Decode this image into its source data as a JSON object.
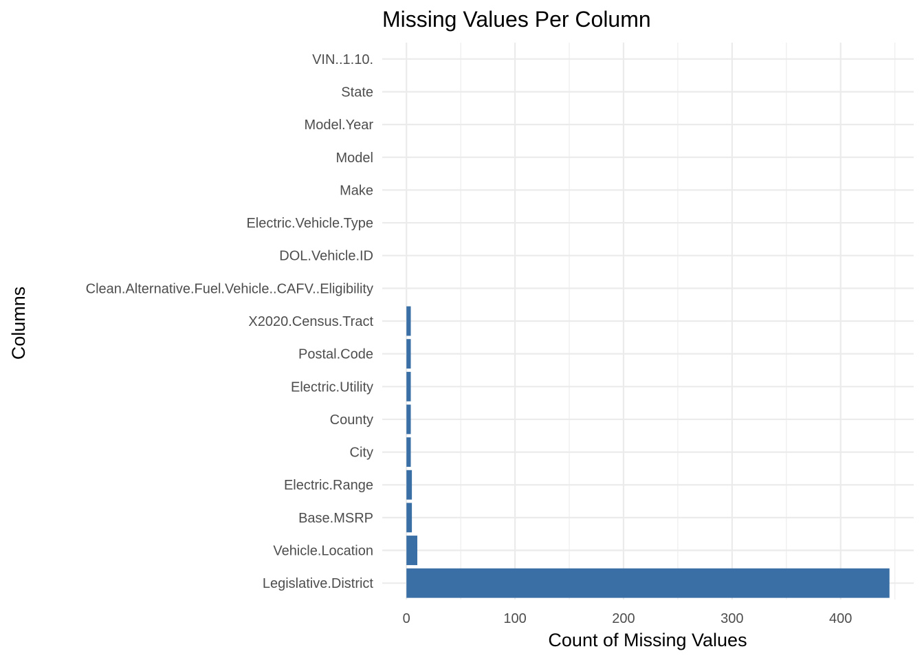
{
  "chart_data": {
    "type": "bar",
    "orientation": "horizontal",
    "title": "Missing Values Per Column",
    "xlabel": "Count of Missing Values",
    "ylabel": "Columns",
    "categories": [
      "Legislative.District",
      "Vehicle.Location",
      "Base.MSRP",
      "Electric.Range",
      "City",
      "County",
      "Electric.Utility",
      "Postal.Code",
      "X2020.Census.Tract",
      "Clean.Alternative.Fuel.Vehicle..CAFV..Eligibility",
      "DOL.Vehicle.ID",
      "Electric.Vehicle.Type",
      "Make",
      "Model",
      "Model.Year",
      "State",
      "VIN..1.10."
    ],
    "values": [
      445,
      10,
      5,
      5,
      4,
      4,
      4,
      4,
      4,
      0,
      0,
      0,
      0,
      0,
      0,
      0,
      0
    ],
    "xlim": [
      -22.3,
      467.3
    ],
    "xticks": [
      0,
      100,
      200,
      300,
      400
    ],
    "xtick_labels": [
      "0",
      "100",
      "200",
      "300",
      "400"
    ],
    "grid": true,
    "bar_color": "#3a6fa6",
    "grid_color": "#ebebeb"
  }
}
